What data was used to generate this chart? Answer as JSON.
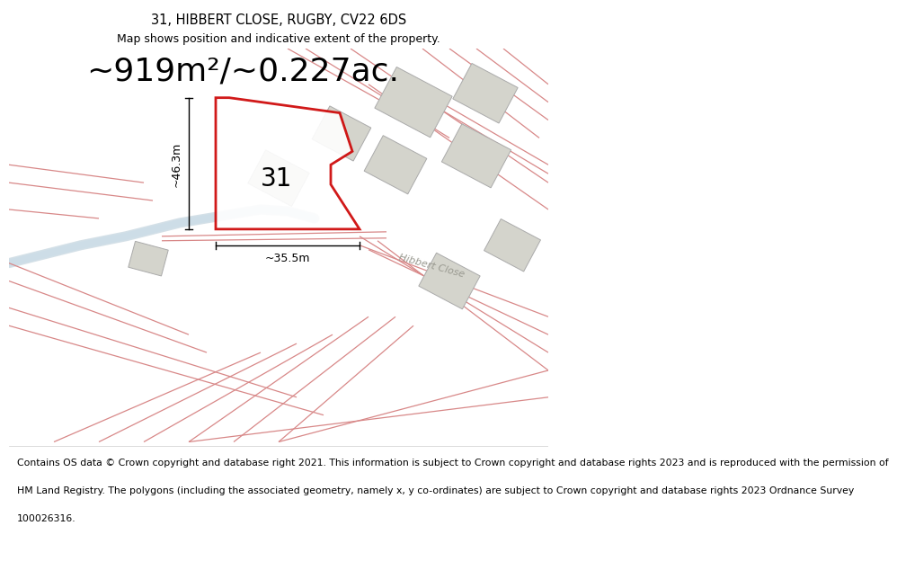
{
  "title_line1": "31, HIBBERT CLOSE, RUGBY, CV22 6DS",
  "title_line2": "Map shows position and indicative extent of the property.",
  "area_text": "~919m²/~0.227ac.",
  "dim_vertical": "~46.3m",
  "dim_horizontal": "~35.5m",
  "label_31": "31",
  "footer_lines": [
    "Contains OS data © Crown copyright and database right 2021. This information is subject to Crown copyright and database rights 2023 and is reproduced with the permission of",
    "HM Land Registry. The polygons (including the associated geometry, namely x, y co-ordinates) are subject to Crown copyright and database rights 2023 Ordnance Survey",
    "100026316."
  ],
  "bg_color": "#f7f7f5",
  "map_bg": "#f0f0ec",
  "road_color": "#e8a8a8",
  "property_color": "#cc0000",
  "building_color": "#d4d4cc",
  "building_edge": "#aaaaaa",
  "road_line_color": "#d88888",
  "river_color": "#c8d8e8",
  "title_fontsize": 10.5,
  "subtitle_fontsize": 9,
  "area_fontsize": 26,
  "label_fontsize": 20,
  "dim_fontsize": 9,
  "footer_fontsize": 7.8,
  "hibbert_fontsize": 8
}
